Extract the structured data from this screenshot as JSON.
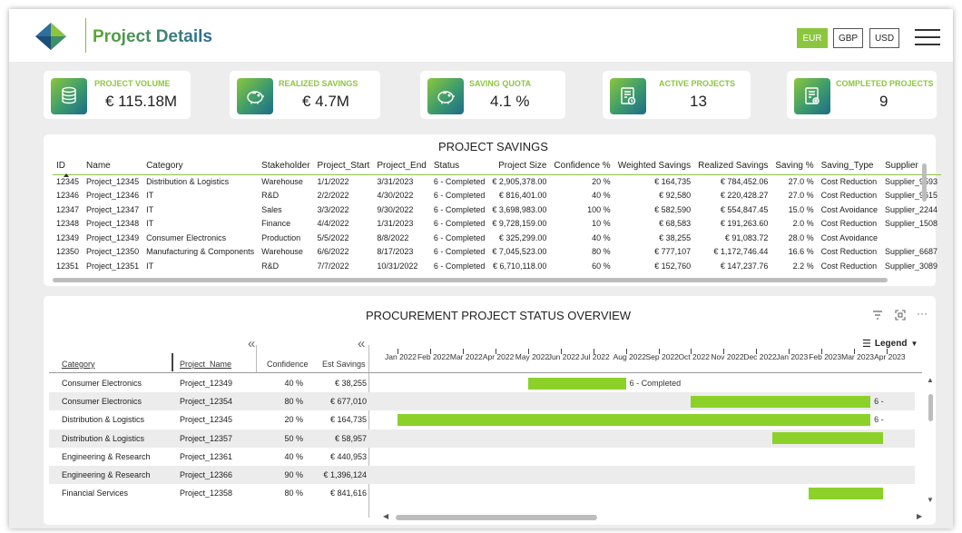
{
  "header": {
    "title": "Project Details",
    "currencies": [
      "EUR",
      "GBP",
      "USD"
    ],
    "active_currency": "EUR"
  },
  "kpis": [
    {
      "label": "PROJECT VOLUME",
      "value": "€ 115.18M",
      "icon": "coins-stack-icon"
    },
    {
      "label": "REALIZED SAVINGS",
      "value": "€ 4.7M",
      "icon": "piggy-bank-icon"
    },
    {
      "label": "SAVING QUOTA",
      "value": "4.1 %",
      "icon": "piggy-bank-icon"
    },
    {
      "label": "ACTIVE PROJECTS",
      "value": "13",
      "icon": "report-clock-icon"
    },
    {
      "label": "COMPLETED PROJECTS",
      "value": "9",
      "icon": "report-gear-icon"
    }
  ],
  "savings_table": {
    "title": "PROJECT SAVINGS",
    "columns": [
      "ID",
      "Name",
      "Category",
      "Stakeholder",
      "Project_Start",
      "Project_End",
      "Status",
      "Project Size",
      "Confidence %",
      "Weighted Savings",
      "Realized Savings",
      "Saving %",
      "Saving_Type",
      "Supplier"
    ],
    "rows": [
      [
        "12345",
        "Project_12345",
        "Distribution & Logistics",
        "Warehouse",
        "1/1/2022",
        "3/31/2023",
        "6 - Completed",
        "€ 2,905,378.00",
        "20 %",
        "€ 164,735",
        "€ 784,452.06",
        "27.0 %",
        "Cost Reduction",
        "Supplier_9593"
      ],
      [
        "12346",
        "Project_12346",
        "IT",
        "R&D",
        "2/2/2022",
        "4/30/2022",
        "6 - Completed",
        "€ 816,401.00",
        "40 %",
        "€ 92,580",
        "€ 220,428.27",
        "27.0 %",
        "Cost Reduction",
        "Supplier_9615"
      ],
      [
        "12347",
        "Project_12347",
        "IT",
        "Sales",
        "3/3/2022",
        "9/30/2022",
        "6 - Completed",
        "€ 3,698,983.00",
        "100 %",
        "€ 582,590",
        "€ 554,847.45",
        "15.0 %",
        "Cost Avoidance",
        "Supplier_2244"
      ],
      [
        "12348",
        "Project_12348",
        "IT",
        "Finance",
        "4/4/2022",
        "1/31/2023",
        "6 - Completed",
        "€ 9,728,159.00",
        "10 %",
        "€ 68,583",
        "€ 191,263.60",
        "2.0 %",
        "Cost Reduction",
        "Supplier_1508"
      ],
      [
        "12349",
        "Project_12349",
        "Consumer Electronics",
        "Production",
        "5/5/2022",
        "8/8/2022",
        "6 - Completed",
        "€ 325,299.00",
        "40 %",
        "€ 38,255",
        "€ 91,083.72",
        "28.0 %",
        "Cost Avoidance",
        ""
      ],
      [
        "12350",
        "Project_12350",
        "Manufacturing & Components",
        "Warehouse",
        "6/6/2022",
        "8/17/2023",
        "6 - Completed",
        "€ 7,045,523.00",
        "80 %",
        "€ 777,107",
        "€ 1,172,746.44",
        "16.6 %",
        "Cost Reduction",
        "Supplier_6687"
      ],
      [
        "12351",
        "Project_12351",
        "IT",
        "R&D",
        "7/7/2022",
        "10/31/2022",
        "6 - Completed",
        "€ 6,710,118.00",
        "60 %",
        "€ 152,760",
        "€ 147,237.76",
        "2.2 %",
        "Cost Reduction",
        "Supplier_3089"
      ]
    ]
  },
  "gantt": {
    "title": "PROCUREMENT PROJECT STATUS OVERVIEW",
    "legend_label": "Legend",
    "collapse_glyph": "«",
    "columns": [
      "Category",
      "Project_Name",
      "Confidence",
      "Est Savings"
    ],
    "months": [
      "Jan 2022",
      "Feb 2022",
      "Mar 2022",
      "Apr 2022",
      "May 2022",
      "Jun 2022",
      "Jul 2022",
      "Aug 2022",
      "Sep 2022",
      "Oct 2022",
      "Nov 2022",
      "Dec 2022",
      "Jan 2023",
      "Feb 2023",
      "Mar 2023",
      "Apr 2023"
    ],
    "rows": [
      {
        "category": "Consumer Electronics",
        "project": "Project_12349",
        "confidence": "40 %",
        "savings": "€ 38,255",
        "bar_start": 4.0,
        "bar_end": 7.0,
        "label": "6 - Completed"
      },
      {
        "category": "Consumer Electronics",
        "project": "Project_12354",
        "confidence": "80 %",
        "savings": "€ 677,010",
        "bar_start": 9.0,
        "bar_end": 14.5,
        "label": "6 -"
      },
      {
        "category": "Distribution & Logistics",
        "project": "Project_12345",
        "confidence": "20 %",
        "savings": "€ 164,735",
        "bar_start": 0.0,
        "bar_end": 14.5,
        "label": "6 -"
      },
      {
        "category": "Distribution & Logistics",
        "project": "Project_12357",
        "confidence": "50 %",
        "savings": "€ 58,957",
        "bar_start": 11.5,
        "bar_end": 14.9,
        "label": ""
      },
      {
        "category": "Engineering & Research",
        "project": "Project_12361",
        "confidence": "40 %",
        "savings": "€ 440,953",
        "bar_start": null,
        "bar_end": null,
        "label": ""
      },
      {
        "category": "Engineering & Research",
        "project": "Project_12366",
        "confidence": "90 %",
        "savings": "€ 1,396,124",
        "bar_start": null,
        "bar_end": null,
        "label": ""
      },
      {
        "category": "Financial Services",
        "project": "Project_12358",
        "confidence": "80 %",
        "savings": "€ 841,616",
        "bar_start": 12.6,
        "bar_end": 14.9,
        "label": ""
      }
    ]
  }
}
